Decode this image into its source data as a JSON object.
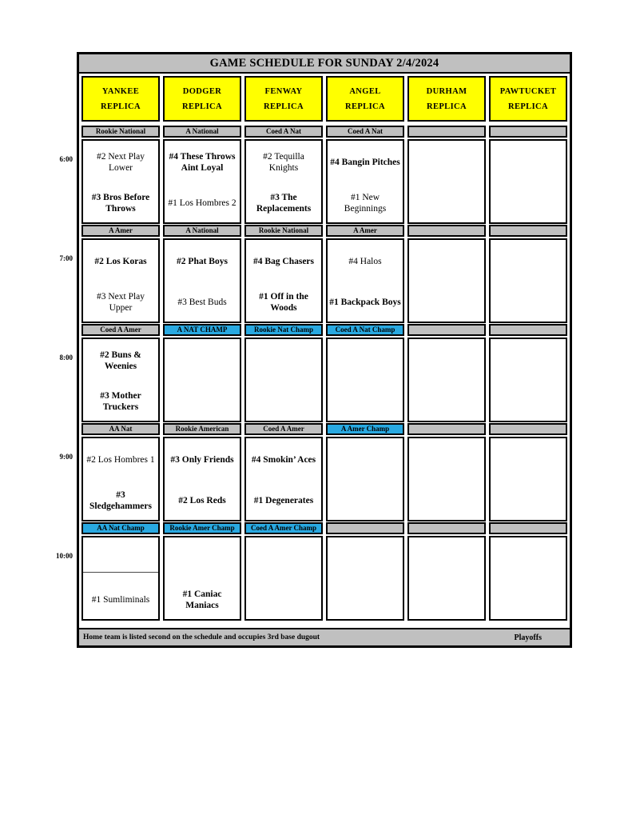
{
  "title": "GAME SCHEDULE FOR SUNDAY 2/4/2024",
  "colors": {
    "gray": "#c0c0c0",
    "cyan": "#29a9e1",
    "yellow": "#ffff00",
    "border": "#000000"
  },
  "columns": [
    {
      "line1": "YANKEE",
      "line2": "REPLICA"
    },
    {
      "line1": "DODGER",
      "line2": "REPLICA"
    },
    {
      "line1": "FENWAY",
      "line2": "REPLICA"
    },
    {
      "line1": "ANGEL",
      "line2": "REPLICA"
    },
    {
      "line1": "DURHAM",
      "line2": "REPLICA"
    },
    {
      "line1": "PAWTUCKET",
      "line2": "REPLICA"
    }
  ],
  "blocks": [
    {
      "time": "6:00",
      "labels": [
        {
          "text": "Rookie National",
          "color": "gray"
        },
        {
          "text": "A National",
          "color": "gray"
        },
        {
          "text": "Coed A Nat",
          "color": "gray"
        },
        {
          "text": "Coed A Nat",
          "color": "gray"
        },
        {
          "text": "",
          "color": "gray"
        },
        {
          "text": "",
          "color": "gray"
        }
      ],
      "games": [
        {
          "team1": {
            "text": "#2 Next Play Lower",
            "bold": false
          },
          "team2": {
            "text": "#3 Bros Before Throws",
            "bold": true
          }
        },
        {
          "team1": {
            "text": "#4 These Throws Aint Loyal",
            "bold": true
          },
          "team2": {
            "text": "#1 Los Hombres 2",
            "bold": false
          }
        },
        {
          "team1": {
            "text": "#2 Tequilla Knights",
            "bold": false
          },
          "team2": {
            "text": "#3 The Replacements",
            "bold": true
          }
        },
        {
          "team1": {
            "text": "#4 Bangin Pitches",
            "bold": true
          },
          "team2": {
            "text": "#1 New Beginnings",
            "bold": false
          }
        },
        {
          "team1": null,
          "team2": null
        },
        {
          "team1": null,
          "team2": null
        }
      ]
    },
    {
      "time": "7:00",
      "labels": [
        {
          "text": "A Amer",
          "color": "gray"
        },
        {
          "text": "A National",
          "color": "gray"
        },
        {
          "text": "Rookie National",
          "color": "gray"
        },
        {
          "text": "A Amer",
          "color": "gray"
        },
        {
          "text": "",
          "color": "gray"
        },
        {
          "text": "",
          "color": "gray"
        }
      ],
      "games": [
        {
          "team1": {
            "text": "#2 Los Koras",
            "bold": true
          },
          "team2": {
            "text": "#3 Next Play Upper",
            "bold": false
          }
        },
        {
          "team1": {
            "text": "#2 Phat Boys",
            "bold": true
          },
          "team2": {
            "text": "#3 Best Buds",
            "bold": false
          }
        },
        {
          "team1": {
            "text": "#4 Bag Chasers",
            "bold": true
          },
          "team2": {
            "text": "#1 Off in the Woods",
            "bold": true
          }
        },
        {
          "team1": {
            "text": "#4 Halos",
            "bold": false
          },
          "team2": {
            "text": "#1 Backpack Boys",
            "bold": true
          }
        },
        {
          "team1": null,
          "team2": null
        },
        {
          "team1": null,
          "team2": null
        }
      ]
    },
    {
      "time": "8:00",
      "labels": [
        {
          "text": "Coed A Amer",
          "color": "gray"
        },
        {
          "text": "A NAT CHAMP",
          "color": "cyan"
        },
        {
          "text": "Rookie Nat Champ",
          "color": "cyan"
        },
        {
          "text": "Coed A Nat Champ",
          "color": "cyan"
        },
        {
          "text": "",
          "color": "gray"
        },
        {
          "text": "",
          "color": "gray"
        }
      ],
      "games": [
        {
          "team1": {
            "text": "#2 Buns & Weenies",
            "bold": true
          },
          "team2": {
            "text": "#3 Mother Truckers",
            "bold": true
          }
        },
        {
          "team1": null,
          "team2": null
        },
        {
          "team1": null,
          "team2": null
        },
        {
          "team1": null,
          "team2": null
        },
        {
          "team1": null,
          "team2": null
        },
        {
          "team1": null,
          "team2": null
        }
      ]
    },
    {
      "time": "9:00",
      "labels": [
        {
          "text": "AA Nat",
          "color": "gray"
        },
        {
          "text": "Rookie American",
          "color": "gray"
        },
        {
          "text": "Coed A Amer",
          "color": "gray"
        },
        {
          "text": "A Amer Champ",
          "color": "cyan"
        },
        {
          "text": "",
          "color": "gray"
        },
        {
          "text": "",
          "color": "gray"
        }
      ],
      "games": [
        {
          "team1": {
            "text": "#2 Los Hombres 1",
            "bold": false
          },
          "team2": {
            "text": "#3 Sledgehammers",
            "bold": true
          }
        },
        {
          "team1": {
            "text": "#3 Only Friends",
            "bold": true
          },
          "team2": {
            "text": "#2 Los Reds",
            "bold": true
          }
        },
        {
          "team1": {
            "text": "#4 Smokin’ Aces",
            "bold": true
          },
          "team2": {
            "text": "#1 Degenerates",
            "bold": true
          }
        },
        {
          "team1": null,
          "team2": null
        },
        {
          "team1": null,
          "team2": null
        },
        {
          "team1": null,
          "team2": null
        }
      ]
    },
    {
      "time": "10:00",
      "labels": [
        {
          "text": "AA Nat Champ",
          "color": "cyan"
        },
        {
          "text": "Rookie Amer Champ",
          "color": "cyan"
        },
        {
          "text": "Coed A Amer Champ",
          "color": "cyan"
        },
        {
          "text": "",
          "color": "gray"
        },
        {
          "text": "",
          "color": "gray"
        },
        {
          "text": "",
          "color": "gray"
        }
      ],
      "games": [
        {
          "team1": null,
          "team2": {
            "text": "#1 Sumliminals",
            "bold": false
          },
          "divider": true
        },
        {
          "team1": null,
          "team2": {
            "text": "#1 Caniac Maniacs",
            "bold": true
          }
        },
        {
          "team1": null,
          "team2": null
        },
        {
          "team1": null,
          "team2": null
        },
        {
          "team1": null,
          "team2": null
        },
        {
          "team1": null,
          "team2": null
        }
      ]
    }
  ],
  "footer": {
    "note": "Home team is listed second on the schedule and occupies 3rd base dugout",
    "right_label": "Playoffs"
  }
}
